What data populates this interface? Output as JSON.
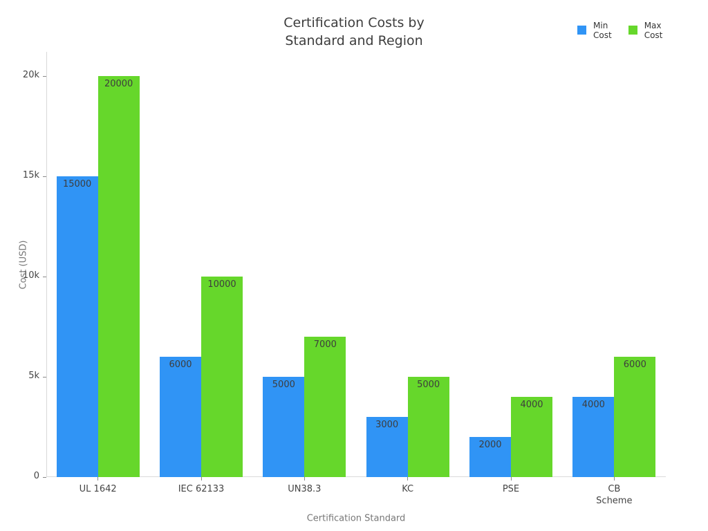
{
  "title": {
    "line1": "Certification Costs by",
    "line2": "Standard and Region"
  },
  "chart_data": {
    "type": "bar",
    "title": "Certification Costs by Standard and Region",
    "xlabel": "Certification Standard",
    "ylabel": "Cost (USD)",
    "categories": [
      "UL 1642",
      "IEC 62133",
      "UN38.3",
      "KC",
      "PSE",
      "CB Scheme"
    ],
    "categories_display": [
      [
        "UL 1642"
      ],
      [
        "IEC 62133"
      ],
      [
        "UN38.3"
      ],
      [
        "KC"
      ],
      [
        "PSE"
      ],
      [
        "CB",
        "Scheme"
      ]
    ],
    "series": [
      {
        "name": "Min Cost",
        "legend_lines": [
          "Min",
          "Cost"
        ],
        "color": "#3094F5",
        "values": [
          15000,
          6000,
          5000,
          3000,
          2000,
          4000
        ]
      },
      {
        "name": "Max Cost",
        "legend_lines": [
          "Max",
          "Cost"
        ],
        "color": "#66D72B",
        "values": [
          20000,
          10000,
          7000,
          5000,
          4000,
          6000
        ]
      }
    ],
    "bar_value_labels": [
      "15000",
      "20000",
      "6000",
      "10000",
      "5000",
      "7000",
      "3000",
      "5000",
      "2000",
      "4000",
      "4000",
      "6000"
    ],
    "ylim": [
      0,
      20000
    ],
    "yticks": [
      {
        "value": 0,
        "label": "0"
      },
      {
        "value": 5000,
        "label": "5k"
      },
      {
        "value": 10000,
        "label": "10k"
      },
      {
        "value": 15000,
        "label": "15k"
      },
      {
        "value": 20000,
        "label": "20k"
      }
    ],
    "grid": false,
    "legend_position": "top-right",
    "colors": {
      "min_bar": "#3094F5",
      "max_bar": "#66D72B",
      "axis_line": "#d9d9d9",
      "tick_mark": "#888888",
      "tick_text": "#444444",
      "axis_title_text": "#777777",
      "bar_label_text": "#3d3d3d",
      "title_text": "#3d3d3d",
      "legend_text": "#333333",
      "background": "#ffffff"
    }
  }
}
